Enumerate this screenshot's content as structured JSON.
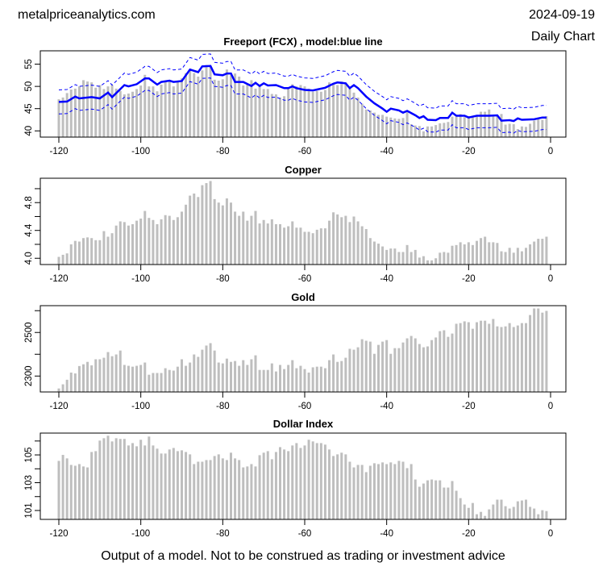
{
  "header": {
    "site": "metalpriceanalytics.com",
    "date": "2024-09-19",
    "chart_type_label": "Daily Chart"
  },
  "footer": {
    "disclaimer": "Output of a model. Not to be construed as trading or investment advice"
  },
  "colors": {
    "bar": "#bebebe",
    "model": "#0000ff",
    "axis": "#000000"
  },
  "chart_data": [
    {
      "type": "bar",
      "title": "Freeport (FCX) , model:blue line",
      "x_start": -120,
      "x_end": -1,
      "xlim": [
        -125,
        4
      ],
      "ylim": [
        38.6,
        58.0
      ],
      "xticks": [
        -120,
        -100,
        -80,
        -60,
        -40,
        -20,
        0
      ],
      "xtick_labels": [
        "-120",
        "-100",
        "-80",
        "-60",
        "-40",
        "-20",
        "0"
      ],
      "yticks": [
        40,
        45,
        50,
        55
      ],
      "ytick_labels": [
        "40",
        "45",
        "50",
        "55"
      ],
      "values": [
        47.1,
        47.5,
        48.5,
        49.3,
        49.5,
        50.0,
        51.4,
        51.1,
        50.9,
        49.7,
        50.3,
        49.4,
        50.0,
        50.3,
        49.5,
        49.0,
        48.2,
        48.4,
        48.8,
        49.4,
        50.2,
        52.6,
        50.0,
        50.0,
        48.9,
        50.4,
        51.1,
        51.1,
        50.0,
        51.2,
        51.8,
        53.0,
        53.5,
        53.0,
        52.2,
        53.6,
        54.8,
        54.5,
        51.5,
        51.3,
        51.6,
        53.8,
        52.5,
        52.9,
        52.2,
        50.2,
        50.6,
        51.4,
        49.5,
        50.1,
        49.4,
        49.4,
        48.3,
        48.2,
        47.5,
        47.8,
        49.8,
        50.5,
        50.0,
        50.3,
        50.0,
        49.5,
        48.8,
        49.0,
        48.8,
        49.2,
        50.9,
        50.5,
        50.3,
        51.1,
        50.8,
        49.7,
        48.6,
        47.5,
        46.1,
        44.8,
        44.6,
        44.1,
        43.6,
        43.6,
        43.2,
        43.0,
        42.8,
        42.7,
        42.9,
        44.2,
        41.5,
        41.2,
        41.1,
        39.9,
        41.0,
        41.0,
        41.3,
        41.7,
        41.8,
        42.0,
        43.2,
        43.2,
        43.8,
        43.1,
        43.3,
        43.0,
        43.2,
        44.3,
        44.3,
        44.8,
        43.6,
        43.6,
        43.8,
        41.4,
        41.6,
        41.5,
        40.4,
        41.0,
        40.9,
        41.6,
        42.3,
        42.6,
        42.5,
        43.3
      ],
      "model": {
        "name": "model",
        "x": [
          -120,
          -118,
          -116,
          -115,
          -112,
          -110,
          -108,
          -107,
          -104,
          -103,
          -101,
          -99,
          -98,
          -96,
          -95,
          -93,
          -92,
          -90,
          -88,
          -86,
          -85,
          -83,
          -82,
          -80,
          -79,
          -78,
          -77,
          -75,
          -73,
          -72,
          -71,
          -70,
          -69,
          -67,
          -65,
          -64,
          -63,
          -62,
          -60,
          -58,
          -57,
          -55,
          -53,
          -52,
          -50,
          -49,
          -48,
          -47,
          -45,
          -43,
          -41,
          -40,
          -39,
          -37,
          -36,
          -35,
          -33,
          -32,
          -31,
          -30,
          -28,
          -27,
          -25,
          -24,
          -23,
          -21,
          -20,
          -18,
          -15,
          -13,
          -12,
          -10,
          -9,
          -8,
          -7,
          -4,
          -2,
          -1
        ],
        "y": [
          46.5,
          46.6,
          47.7,
          47.3,
          47.6,
          47.3,
          48.6,
          47.6,
          50.3,
          50.0,
          50.5,
          51.8,
          51.8,
          50.4,
          51.0,
          51.3,
          51.0,
          51.2,
          53.8,
          53.2,
          54.5,
          54.6,
          52.7,
          52.5,
          52.9,
          52.9,
          51.0,
          51.0,
          50.1,
          50.8,
          50.1,
          50.7,
          50.2,
          50.3,
          49.6,
          49.6,
          50.0,
          49.6,
          49.2,
          49.1,
          49.3,
          49.7,
          50.6,
          50.9,
          50.7,
          49.6,
          50.3,
          49.6,
          47.7,
          46.2,
          45.0,
          44.3,
          45.0,
          44.6,
          44.1,
          44.5,
          43.5,
          42.9,
          43.3,
          42.5,
          42.4,
          42.9,
          42.9,
          44.1,
          43.4,
          43.4,
          43.0,
          43.4,
          43.4,
          43.5,
          42.3,
          42.4,
          42.2,
          42.8,
          42.5,
          42.6,
          43.0,
          43.0
        ],
        "band_offset": 2.7
      }
    },
    {
      "type": "bar",
      "title": "Copper",
      "x_start": -120,
      "x_end": -1,
      "xlim": [
        -125,
        4
      ],
      "ylim": [
        3.91,
        5.15
      ],
      "xticks": [
        -120,
        -100,
        -80,
        -60,
        -40,
        -20,
        0
      ],
      "xtick_labels": [
        "-120",
        "-100",
        "-80",
        "-60",
        "-40",
        "-20",
        "0"
      ],
      "yticks": [
        4.0,
        4.2,
        4.4,
        4.6,
        4.8,
        5.0
      ],
      "ytick_labels": [
        "4.0",
        "",
        "4.4",
        "",
        "4.8",
        ""
      ],
      "values": [
        4.02,
        4.05,
        4.07,
        4.2,
        4.25,
        4.24,
        4.29,
        4.3,
        4.29,
        4.26,
        4.26,
        4.39,
        4.31,
        4.36,
        4.47,
        4.53,
        4.52,
        4.47,
        4.49,
        4.54,
        4.57,
        4.68,
        4.58,
        4.55,
        4.49,
        4.56,
        4.62,
        4.61,
        4.55,
        4.59,
        4.67,
        4.77,
        4.9,
        4.93,
        4.88,
        5.05,
        5.08,
        5.11,
        4.85,
        4.8,
        4.76,
        4.86,
        4.8,
        4.67,
        4.61,
        4.67,
        4.54,
        4.61,
        4.68,
        4.5,
        4.55,
        4.5,
        4.56,
        4.49,
        4.49,
        4.44,
        4.46,
        4.53,
        4.44,
        4.44,
        4.38,
        4.38,
        4.36,
        4.41,
        4.43,
        4.43,
        4.54,
        4.66,
        4.63,
        4.59,
        4.61,
        4.52,
        4.6,
        4.53,
        4.46,
        4.42,
        4.29,
        4.24,
        4.21,
        4.17,
        4.12,
        4.14,
        4.14,
        4.09,
        4.09,
        4.19,
        4.09,
        4.12,
        4.01,
        4.03,
        3.97,
        3.97,
        4.0,
        4.08,
        4.09,
        4.08,
        4.18,
        4.19,
        4.23,
        4.2,
        4.23,
        4.19,
        4.25,
        4.29,
        4.31,
        4.23,
        4.23,
        4.22,
        4.1,
        4.09,
        4.15,
        4.08,
        4.15,
        4.1,
        4.15,
        4.2,
        4.24,
        4.28,
        4.28,
        4.31
      ]
    },
    {
      "type": "bar",
      "title": "Gold",
      "x_start": -120,
      "x_end": -1,
      "xlim": [
        -125,
        4
      ],
      "ylim": [
        2227,
        2623
      ],
      "xticks": [
        -120,
        -100,
        -80,
        -60,
        -40,
        -20,
        0
      ],
      "xtick_labels": [
        "-120",
        "-100",
        "-80",
        "-60",
        "-40",
        "-20",
        "0"
      ],
      "yticks": [
        2300,
        2400,
        2500,
        2600
      ],
      "ytick_labels": [
        "2300",
        "",
        "2500",
        ""
      ],
      "values": [
        2243,
        2262,
        2283,
        2316,
        2312,
        2346,
        2354,
        2365,
        2349,
        2377,
        2377,
        2384,
        2410,
        2391,
        2399,
        2417,
        2351,
        2347,
        2343,
        2347,
        2351,
        2362,
        2306,
        2314,
        2314,
        2314,
        2336,
        2328,
        2325,
        2343,
        2377,
        2347,
        2362,
        2399,
        2388,
        2421,
        2440,
        2451,
        2417,
        2362,
        2358,
        2380,
        2365,
        2369,
        2347,
        2373,
        2351,
        2377,
        2395,
        2328,
        2328,
        2328,
        2358,
        2321,
        2351,
        2332,
        2351,
        2373,
        2336,
        2347,
        2332,
        2316,
        2340,
        2343,
        2343,
        2336,
        2373,
        2399,
        2365,
        2369,
        2384,
        2425,
        2421,
        2432,
        2469,
        2462,
        2458,
        2402,
        2443,
        2458,
        2465,
        2402,
        2428,
        2428,
        2454,
        2473,
        2484,
        2473,
        2447,
        2432,
        2436,
        2465,
        2477,
        2506,
        2510,
        2480,
        2495,
        2540,
        2543,
        2551,
        2547,
        2517,
        2547,
        2554,
        2554,
        2540,
        2562,
        2528,
        2525,
        2528,
        2543,
        2525,
        2532,
        2543,
        2543,
        2580,
        2610,
        2610,
        2591,
        2599
      ]
    },
    {
      "type": "bar",
      "title": "Dollar Index",
      "x_start": -120,
      "x_end": -1,
      "xlim": [
        -125,
        4
      ],
      "ylim": [
        100.36,
        106.57
      ],
      "xticks": [
        -120,
        -100,
        -80,
        -60,
        -40,
        -20,
        0
      ],
      "xtick_labels": [
        "-120",
        "-100",
        "-80",
        "-60",
        "-40",
        "-20",
        "0"
      ],
      "yticks": [
        101,
        102,
        103,
        104,
        105,
        106
      ],
      "ytick_labels": [
        "101",
        "",
        "103",
        "",
        "105",
        ""
      ],
      "values": [
        104.57,
        105.0,
        104.75,
        104.28,
        104.22,
        104.34,
        104.17,
        104.1,
        105.21,
        105.27,
        106.03,
        106.2,
        106.38,
        105.97,
        106.2,
        106.15,
        106.15,
        105.68,
        105.85,
        105.62,
        106.09,
        105.68,
        106.32,
        105.68,
        105.45,
        105.1,
        105.1,
        105.39,
        105.5,
        105.27,
        105.33,
        105.21,
        105.04,
        104.34,
        104.51,
        104.51,
        104.63,
        104.63,
        104.92,
        105.04,
        104.75,
        104.63,
        105.16,
        104.75,
        104.63,
        104.1,
        104.17,
        104.34,
        104.17,
        104.98,
        105.16,
        105.27,
        104.69,
        105.21,
        105.56,
        105.39,
        105.27,
        105.68,
        105.85,
        105.5,
        105.68,
        106.09,
        105.97,
        105.85,
        105.85,
        105.74,
        105.39,
        104.92,
        105.04,
        105.16,
        105.04,
        104.51,
        104.1,
        104.28,
        104.28,
        103.76,
        104.22,
        104.4,
        104.34,
        104.46,
        104.34,
        104.46,
        104.34,
        104.57,
        104.51,
        104.05,
        104.34,
        103.23,
        102.71,
        102.94,
        103.17,
        103.23,
        103.17,
        103.17,
        102.65,
        102.65,
        103.12,
        102.42,
        101.89,
        101.43,
        101.19,
        101.54,
        100.73,
        100.9,
        100.61,
        101.08,
        101.43,
        101.78,
        101.78,
        101.31,
        101.14,
        101.26,
        101.66,
        101.72,
        101.78,
        101.26,
        101.14,
        100.73,
        101.02,
        100.96
      ]
    }
  ]
}
